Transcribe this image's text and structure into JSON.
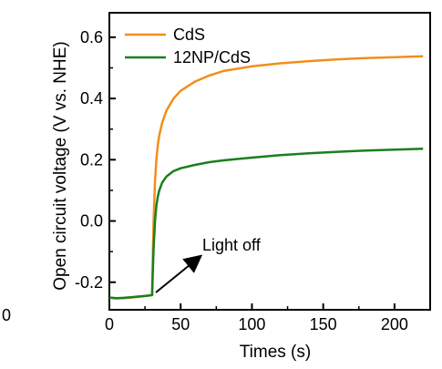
{
  "chart_data": {
    "type": "line",
    "title": "",
    "xlabel": "Times (s)",
    "ylabel": "Open circuit voltage (V vs. NHE)",
    "xlim": [
      0,
      225
    ],
    "ylim": [
      -0.29,
      0.68
    ],
    "x_ticks": [
      0,
      50,
      100,
      150,
      200
    ],
    "y_ticks": [
      -0.2,
      0.0,
      0.2,
      0.4,
      0.6
    ],
    "x_tick_labels": [
      "0",
      "50",
      "100",
      "150",
      "200"
    ],
    "y_tick_labels": [
      "-0.2",
      "0.0",
      "0.2",
      "0.4",
      "0.6"
    ],
    "grid": false,
    "legend_position": "top-left",
    "annotation": "Light off",
    "left_edge_fragment": "0",
    "series": [
      {
        "name": "CdS",
        "color": "#f28e1c",
        "x": [
          0,
          5,
          10,
          15,
          20,
          25,
          30,
          30.5,
          31,
          32,
          33,
          34,
          35,
          37,
          40,
          45,
          50,
          60,
          70,
          80,
          100,
          120,
          140,
          160,
          180,
          200,
          220
        ],
        "y": [
          -0.25,
          -0.253,
          -0.252,
          -0.25,
          -0.248,
          -0.245,
          -0.242,
          -0.12,
          0.0,
          0.13,
          0.2,
          0.25,
          0.28,
          0.32,
          0.36,
          0.4,
          0.425,
          0.455,
          0.475,
          0.49,
          0.505,
          0.515,
          0.522,
          0.528,
          0.532,
          0.535,
          0.538
        ]
      },
      {
        "name": "12NP/CdS",
        "color": "#1a7f1e",
        "x": [
          0,
          5,
          10,
          15,
          20,
          25,
          30,
          31,
          32,
          33,
          34,
          35,
          37,
          40,
          45,
          50,
          60,
          70,
          80,
          100,
          120,
          140,
          160,
          180,
          200,
          220
        ],
        "y": [
          -0.25,
          -0.252,
          -0.251,
          -0.249,
          -0.247,
          -0.245,
          -0.242,
          -0.09,
          0.0,
          0.05,
          0.08,
          0.1,
          0.125,
          0.145,
          0.163,
          0.172,
          0.183,
          0.192,
          0.198,
          0.207,
          0.215,
          0.221,
          0.226,
          0.23,
          0.233,
          0.236
        ]
      }
    ]
  }
}
